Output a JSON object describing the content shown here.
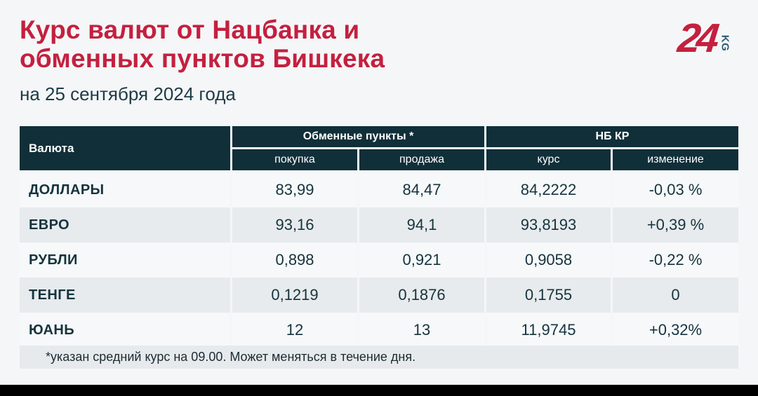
{
  "header": {
    "title_line1": "Курс валют от Нацбанка и",
    "title_line2": "обменных пунктов Бишкека",
    "subtitle": "на 25 сентября 2024 года"
  },
  "logo": {
    "number": "24",
    "suffix": "KG"
  },
  "colors": {
    "accent_red": "#c4203f",
    "header_bg": "#102f39",
    "dark_text": "#16333d",
    "row_light": "#f6f8fa",
    "row_alt": "#e7ebed",
    "page_bg": "#f5f6f8",
    "logo_kg": "#2b5c74"
  },
  "table": {
    "col_currency": "Валюта",
    "group_exchange": "Обменные пункты *",
    "group_nbkr": "НБ КР",
    "sub_buy": "покупка",
    "sub_sell": "продажа",
    "sub_rate": "курс",
    "sub_change": "изменение",
    "rows": [
      {
        "currency": "ДОЛЛАРЫ",
        "buy": "83,99",
        "sell": "84,47",
        "rate": "84,2222",
        "change": "-0,03 %"
      },
      {
        "currency": "ЕВРО",
        "buy": "93,16",
        "sell": "94,1",
        "rate": "93,8193",
        "change": "+0,39 %"
      },
      {
        "currency": "РУБЛИ",
        "buy": "0,898",
        "sell": "0,921",
        "rate": "0,9058",
        "change": "-0,22 %"
      },
      {
        "currency": "ТЕНГЕ",
        "buy": "0,1219",
        "sell": "0,1876",
        "rate": "0,1755",
        "change": "0"
      },
      {
        "currency": "ЮАНЬ",
        "buy": "12",
        "sell": "13",
        "rate": "11,9745",
        "change": "+0,32%"
      }
    ]
  },
  "footnote": "*указан средний курс на 09.00. Может меняться в течение дня.",
  "chart_data": {
    "type": "table",
    "title": "Курс валют от Нацбанка и обменных пунктов Бишкека",
    "subtitle": "на 25 сентября 2024 года",
    "column_groups": [
      "Обменные пункты *",
      "НБ КР"
    ],
    "columns": [
      "Валюта",
      "покупка",
      "продажа",
      "курс",
      "изменение"
    ],
    "rows": [
      [
        "ДОЛЛАРЫ",
        "83,99",
        "84,47",
        "84,2222",
        "-0,03 %"
      ],
      [
        "ЕВРО",
        "93,16",
        "94,1",
        "93,8193",
        "+0,39 %"
      ],
      [
        "РУБЛИ",
        "0,898",
        "0,921",
        "0,9058",
        "-0,22 %"
      ],
      [
        "ТЕНГЕ",
        "0,1219",
        "0,1876",
        "0,1755",
        "0"
      ],
      [
        "ЮАНЬ",
        "12",
        "13",
        "11,9745",
        "+0,32%"
      ]
    ],
    "footnote": "*указан средний курс на 09.00. Может меняться в течение дня."
  }
}
